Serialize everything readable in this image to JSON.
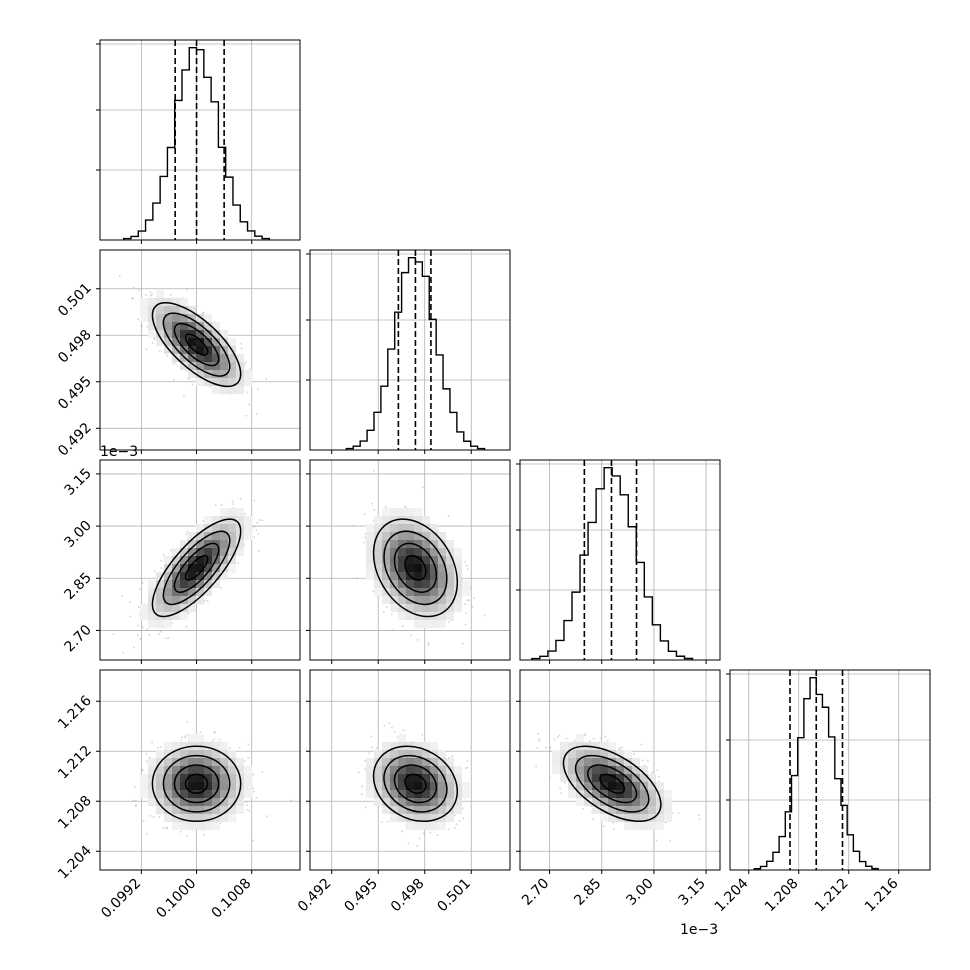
{
  "chart_data": {
    "type": "corner",
    "parameters": [
      {
        "name": "",
        "range": [
          0.0986,
          0.1015
        ],
        "ticks": [
          0.0992,
          0.1,
          0.1008
        ],
        "tick_labels": [
          "0.0992",
          "0.1000",
          "0.1008"
        ],
        "offset_label": "",
        "mean": 0.1,
        "sd": 0.00032,
        "quantiles": [
          0.09969,
          0.1,
          0.1004
        ]
      },
      {
        "name": "",
        "range": [
          0.4906,
          0.5035
        ],
        "ticks": [
          0.492,
          0.495,
          0.498,
          0.501
        ],
        "tick_labels": [
          "0.492",
          "0.495",
          "0.498",
          "0.501"
        ],
        "offset_label": "",
        "mean": 0.4974,
        "sd": 0.00135,
        "quantiles": [
          0.4963,
          0.4974,
          0.4984
        ]
      },
      {
        "name": "",
        "range": [
          2.615,
          3.19
        ],
        "ticks": [
          2.7,
          2.85,
          3.0,
          3.15
        ],
        "tick_labels": [
          "2.70",
          "2.85",
          "3.00",
          "3.15"
        ],
        "offset_label": "1e−3",
        "mean": 2.88,
        "sd": 0.07,
        "quantiles": [
          2.8,
          2.878,
          2.95
        ]
      },
      {
        "name": "",
        "range": [
          1.2025,
          1.2185
        ],
        "ticks": [
          1.204,
          1.208,
          1.212,
          1.216
        ],
        "tick_labels": [
          "1.204",
          "1.208",
          "1.212",
          "1.216"
        ],
        "offset_label": "",
        "mean": 1.2094,
        "sd": 0.0015,
        "quantiles": [
          1.2073,
          1.2094,
          1.2115
        ]
      }
    ],
    "correlations": [
      {
        "pair": [
          0,
          1
        ],
        "r": -0.7
      },
      {
        "pair": [
          0,
          2
        ],
        "r": 0.75
      },
      {
        "pair": [
          1,
          2
        ],
        "r": -0.3
      },
      {
        "pair": [
          0,
          3
        ],
        "r": 0.0
      },
      {
        "pair": [
          1,
          3
        ],
        "r": -0.2
      },
      {
        "pair": [
          2,
          3
        ],
        "r": -0.55
      }
    ],
    "contour_levels_sigma": [
      0.5,
      1.0,
      1.5,
      2.0
    ],
    "quantile_labels": [
      "16%",
      "50%",
      "84%"
    ],
    "grid": true,
    "colors": {
      "line": "#000000",
      "grid": "#b0b0b0",
      "points": "#9a9a9a"
    }
  }
}
